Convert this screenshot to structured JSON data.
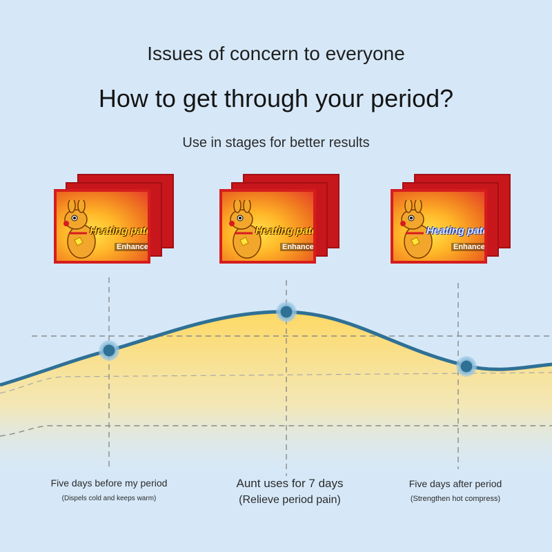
{
  "header": {
    "line1": "Issues of concern to everyone",
    "line2": "How to get through your period?",
    "line3": "Use in stages for better results"
  },
  "product": {
    "name": "Heating patch",
    "variant": "Enhanced",
    "mascot": "kangaroo-illustration",
    "count": 3
  },
  "stages": [
    {
      "title": "Five days before my period",
      "note": "(Dispels cold and keeps warm)"
    },
    {
      "title": "Aunt uses for 7 days",
      "note": "(Relieve period pain)"
    },
    {
      "title": "Five days after period",
      "note": "(Strengthen hot compress)"
    }
  ],
  "colors": {
    "background": "#d6e8f8",
    "curve": "#2f7095",
    "fill": "#ffd75a",
    "patch_border": "#d51d1d"
  }
}
